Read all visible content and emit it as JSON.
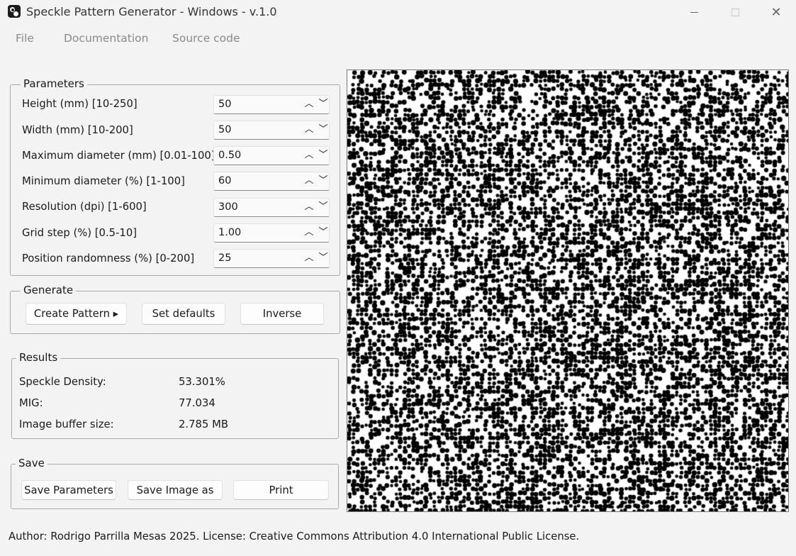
{
  "window": {
    "title": "Speckle Pattern Generator - Windows - v.1.0",
    "controls": {
      "minimize": "—",
      "maximize": "☐",
      "close": "✕"
    }
  },
  "menu": [
    "File",
    "Documentation",
    "Source code"
  ],
  "parameters": {
    "title": "Parameters",
    "rows": [
      {
        "label": "Height (mm) [10-250]",
        "value": "50"
      },
      {
        "label": "Width (mm) [10-200]",
        "value": "50"
      },
      {
        "label": "Maximum diameter (mm) [0.01-100]",
        "value": "0.50"
      },
      {
        "label": "Minimum diameter (%) [1-100]",
        "value": "60"
      },
      {
        "label": "Resolution (dpi) [1-600]",
        "value": "300"
      },
      {
        "label": "Grid step (%) [0.5-10]",
        "value": "1.00"
      },
      {
        "label": "Position randomness (%) [0-200]",
        "value": "25"
      }
    ],
    "spin_up_glyph": "︿",
    "spin_down_glyph": "﹀"
  },
  "generate": {
    "title": "Generate",
    "create_label": "Create Pattern ▸",
    "defaults_label": "Set defaults",
    "inverse_label": "Inverse"
  },
  "results": {
    "title": "Results",
    "rows": [
      {
        "label": "Speckle Density:",
        "value": "53.301%"
      },
      {
        "label": "MIG:",
        "value": "77.034"
      },
      {
        "label": "Image buffer size:",
        "value": "2.785 MB"
      }
    ]
  },
  "save": {
    "title": "Save",
    "params_label": "Save Parameters",
    "image_label": "Save Image as",
    "print_label": "Print"
  },
  "footer": "Author: Rodrigo Parrilla Mesas 2025. License: Creative Commons Attribution 4.0 International Public License.",
  "colors": {
    "background": "#f3f3f3",
    "speckle": "#000000",
    "pattern_background": "#ffffff",
    "group_border": "#a9a9a9"
  }
}
